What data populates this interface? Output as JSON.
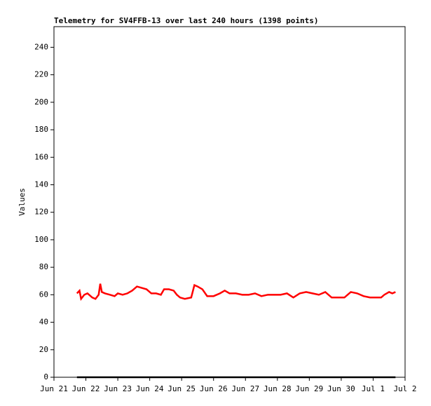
{
  "chart_data": {
    "type": "line",
    "title": "Telemetry for SV4FFB-13 over last 240 hours (1398 points)",
    "y_label": "Values",
    "xlim": [
      0,
      11
    ],
    "ylim": [
      0,
      255
    ],
    "xticks": [
      {
        "value": 0,
        "label": "Jun 21"
      },
      {
        "value": 1,
        "label": "Jun 22"
      },
      {
        "value": 2,
        "label": "Jun 23"
      },
      {
        "value": 3,
        "label": "Jun 24"
      },
      {
        "value": 4,
        "label": "Jun 25"
      },
      {
        "value": 5,
        "label": "Jun 26"
      },
      {
        "value": 6,
        "label": "Jun 27"
      },
      {
        "value": 7,
        "label": "Jun 28"
      },
      {
        "value": 8,
        "label": "Jun 29"
      },
      {
        "value": 9,
        "label": "Jun 30"
      },
      {
        "value": 10,
        "label": "Jul 1"
      },
      {
        "value": 11,
        "label": "Jul 2"
      }
    ],
    "yticks": [
      0,
      20,
      40,
      60,
      80,
      100,
      120,
      140,
      160,
      180,
      200,
      220,
      240
    ],
    "series": [
      {
        "color": "#ff0000",
        "x": [
          0.72,
          0.8,
          0.85,
          0.95,
          1.05,
          1.2,
          1.3,
          1.4,
          1.45,
          1.5,
          1.6,
          1.75,
          1.9,
          2.0,
          2.15,
          2.3,
          2.45,
          2.6,
          2.75,
          2.9,
          3.05,
          3.2,
          3.35,
          3.45,
          3.6,
          3.75,
          3.85,
          3.95,
          4.1,
          4.3,
          4.4,
          4.5,
          4.65,
          4.8,
          5.0,
          5.2,
          5.35,
          5.5,
          5.7,
          5.9,
          6.1,
          6.3,
          6.5,
          6.7,
          6.9,
          7.1,
          7.3,
          7.5,
          7.7,
          7.9,
          8.1,
          8.3,
          8.5,
          8.7,
          8.9,
          9.1,
          9.3,
          9.5,
          9.7,
          9.9,
          10.1,
          10.25,
          10.35,
          10.5,
          10.6,
          10.7
        ],
        "values": [
          61,
          63,
          57,
          60,
          61,
          58,
          57,
          60,
          68,
          62,
          61,
          60,
          59,
          61,
          60,
          61,
          63,
          66,
          65,
          64,
          61,
          61,
          60,
          64,
          64,
          63,
          60,
          58,
          57,
          58,
          67,
          66,
          64,
          59,
          59,
          61,
          63,
          61,
          61,
          60,
          60,
          61,
          59,
          60,
          60,
          60,
          61,
          58,
          61,
          62,
          61,
          60,
          62,
          58,
          58,
          58,
          62,
          61,
          59,
          58,
          58,
          58,
          60,
          62,
          61,
          62
        ]
      },
      {
        "color": "#000000",
        "x": [
          0.72,
          10.7
        ],
        "values": [
          0,
          0
        ]
      }
    ]
  }
}
